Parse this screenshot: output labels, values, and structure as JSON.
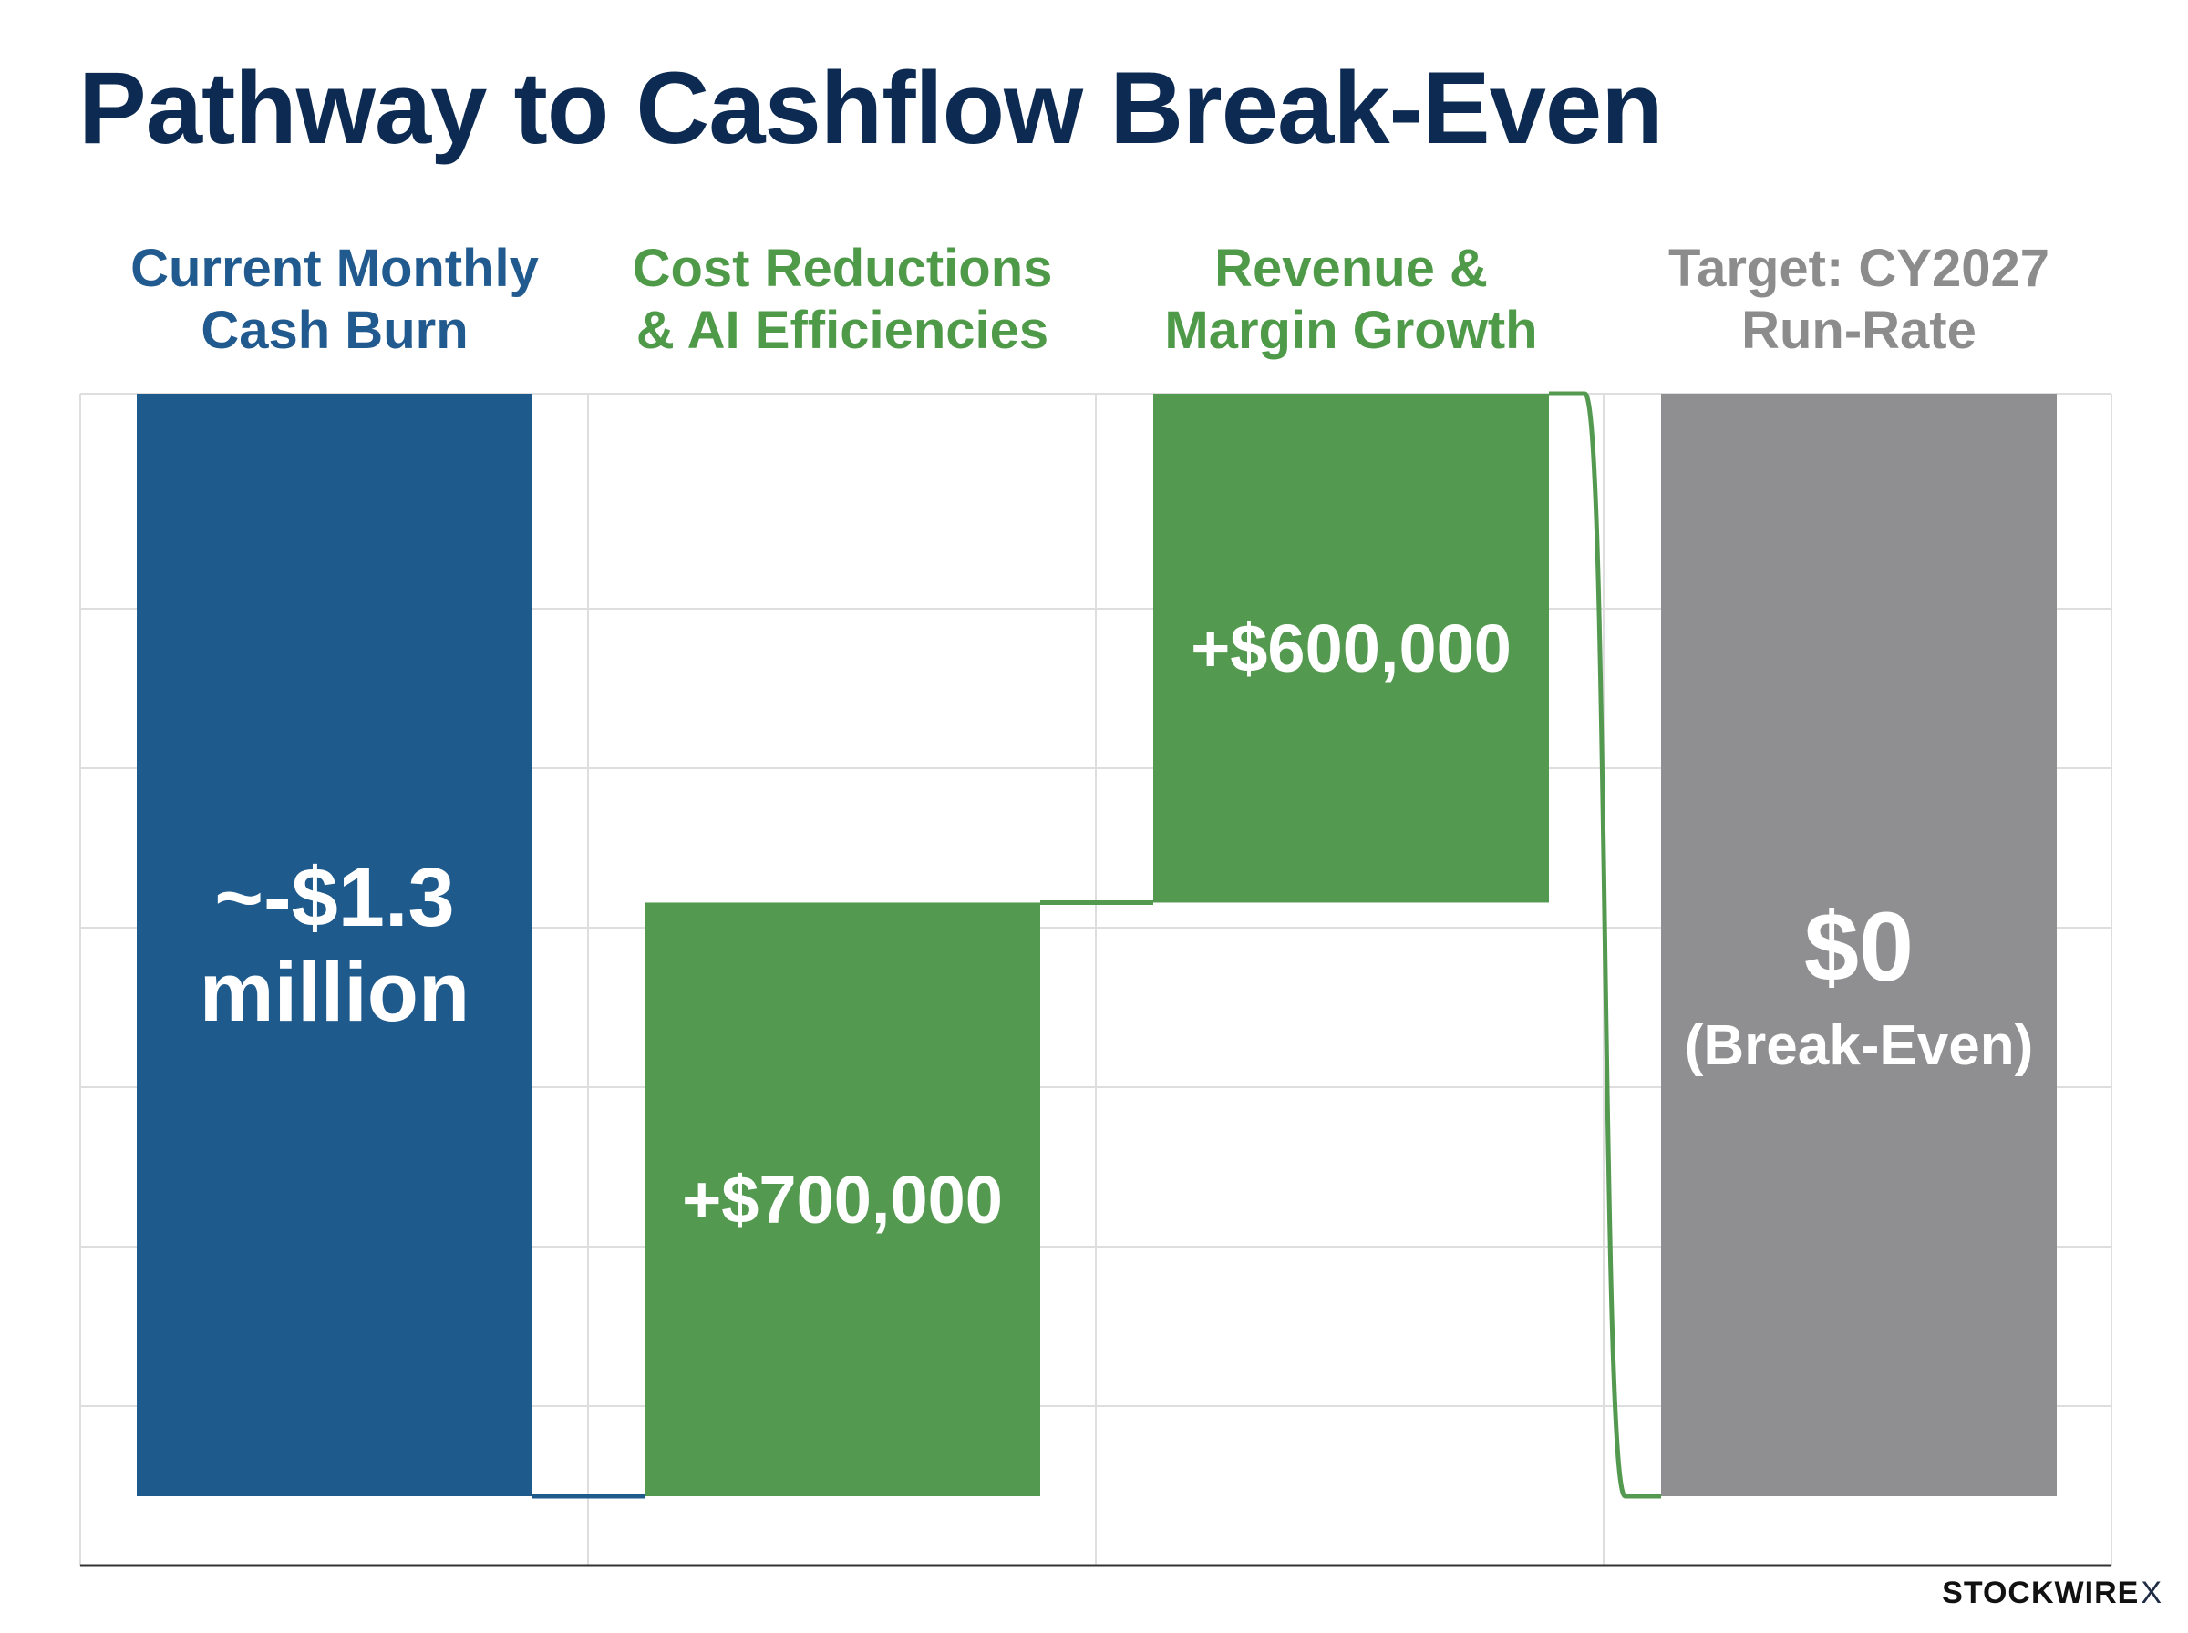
{
  "title": "Pathway to Cashflow Break-Even",
  "brand": {
    "name": "STOCKWIRE",
    "mark": "X"
  },
  "colors": {
    "title": "#0d2b52",
    "burn_bar": "#1f5a8c",
    "burn_label": "#215a8e",
    "gain_bar": "#53994f",
    "gain_label": "#4e9a48",
    "target_bar": "#8f8e90",
    "target_label": "#8c8c8c",
    "grid": "#dedede"
  },
  "chart_data": {
    "type": "waterfall",
    "units": "USD per month",
    "ylim": [
      -1300000,
      0
    ],
    "grid": true,
    "steps": [
      {
        "category_lines": [
          "Current Monthly",
          "Cash Burn"
        ],
        "kind": "total",
        "start": 0,
        "end": -1300000,
        "label_lines": [
          "~-$1.3",
          "million"
        ]
      },
      {
        "category_lines": [
          "Cost Reductions",
          "& AI Efficiencies"
        ],
        "kind": "increase",
        "start": -1300000,
        "end": -600000,
        "label_lines": [
          "+$700,000"
        ]
      },
      {
        "category_lines": [
          "Revenue &",
          "Margin Growth"
        ],
        "kind": "increase",
        "start": -600000,
        "end": 0,
        "label_lines": [
          "+$600,000"
        ]
      },
      {
        "category_lines": [
          "Target: CY2027",
          "Run-Rate"
        ],
        "kind": "total",
        "start": -1300000,
        "end": 0,
        "label_lines": [
          "$0",
          "(Break-Even)"
        ]
      }
    ]
  }
}
